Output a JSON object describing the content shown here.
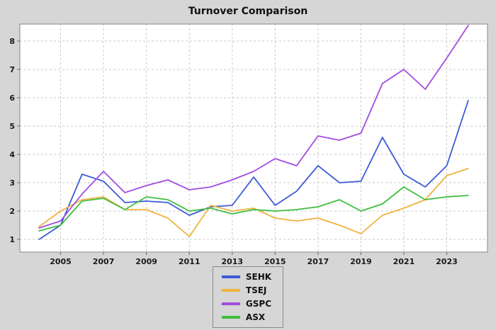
{
  "chart_data": {
    "type": "line",
    "title": "Turnover Comparison",
    "x": [
      2004,
      2005,
      2006,
      2007,
      2008,
      2009,
      2010,
      2011,
      2012,
      2013,
      2014,
      2015,
      2016,
      2017,
      2018,
      2019,
      2020,
      2021,
      2022,
      2023,
      2024
    ],
    "series": [
      {
        "name": "SEHK",
        "color": "#3c5bd7",
        "values": [
          1.0,
          1.5,
          3.3,
          3.05,
          2.3,
          2.35,
          2.3,
          1.85,
          2.15,
          2.2,
          3.2,
          2.2,
          2.7,
          3.6,
          3.0,
          3.05,
          4.6,
          3.3,
          2.85,
          3.6,
          5.9
        ]
      },
      {
        "name": "TSEJ",
        "color": "#eeb33f",
        "values": [
          1.45,
          2.0,
          2.4,
          2.5,
          2.05,
          2.05,
          1.75,
          1.1,
          2.2,
          2.0,
          2.1,
          1.75,
          1.65,
          1.75,
          1.5,
          1.2,
          1.85,
          2.1,
          2.4,
          3.25,
          3.5
        ]
      },
      {
        "name": "GSPC",
        "color": "#a24ce0",
        "values": [
          1.4,
          1.65,
          2.6,
          3.4,
          2.65,
          2.9,
          3.1,
          2.75,
          2.85,
          3.1,
          3.4,
          3.85,
          3.6,
          4.65,
          4.5,
          4.75,
          6.5,
          7.0,
          6.3,
          7.4,
          8.55
        ]
      },
      {
        "name": "ASX",
        "color": "#3fbf3f",
        "values": [
          1.3,
          1.5,
          2.35,
          2.45,
          2.05,
          2.5,
          2.4,
          2.0,
          2.1,
          1.9,
          2.05,
          2.0,
          2.05,
          2.15,
          2.4,
          2.0,
          2.25,
          2.85,
          2.4,
          2.5,
          2.55
        ]
      }
    ],
    "x_ticks": [
      2005,
      2007,
      2009,
      2011,
      2013,
      2015,
      2017,
      2019,
      2021,
      2023
    ],
    "y_ticks": [
      1,
      2,
      3,
      4,
      5,
      6,
      7,
      8
    ],
    "xlim": [
      2003.1,
      2024.9
    ],
    "ylim": [
      0.55,
      8.6
    ],
    "grid": "dashed",
    "legend_position": "bottom",
    "xlabel": "",
    "ylabel": ""
  },
  "colors": {
    "background": "#d6d6d6",
    "plot_background": "#ffffff",
    "gridline": "#c9c9c9",
    "axis_border": "#858585",
    "tick": "#666666",
    "text": "#1a1a1a"
  }
}
